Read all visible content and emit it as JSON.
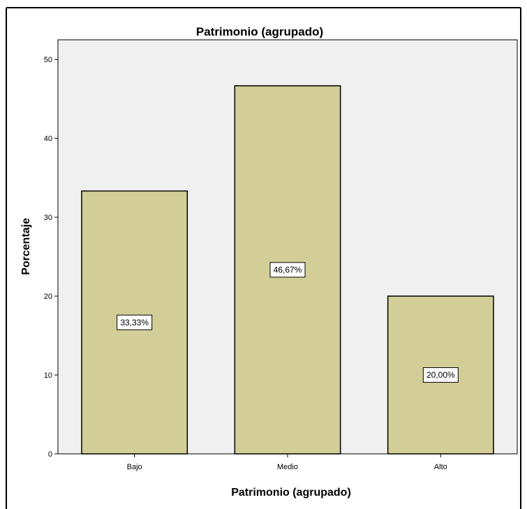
{
  "chart_data": {
    "type": "bar",
    "title": "Patrimonio (agrupado)",
    "xlabel": "Patrimonio (agrupado)",
    "ylabel": "Porcentaje",
    "categories": [
      "Bajo",
      "Medio",
      "Alto"
    ],
    "values": [
      33.33,
      46.67,
      20.0
    ],
    "data_labels": [
      "33,33%",
      "46,67%",
      "20,00%"
    ],
    "ylim": [
      0,
      52.5
    ],
    "yticks": [
      0,
      10,
      20,
      30,
      40,
      50
    ],
    "grid": false,
    "legend": "none",
    "colors": {
      "plot_background": "#f0f0f0",
      "bar_fill": "#d3ce97",
      "bar_stroke": "#000000"
    }
  }
}
